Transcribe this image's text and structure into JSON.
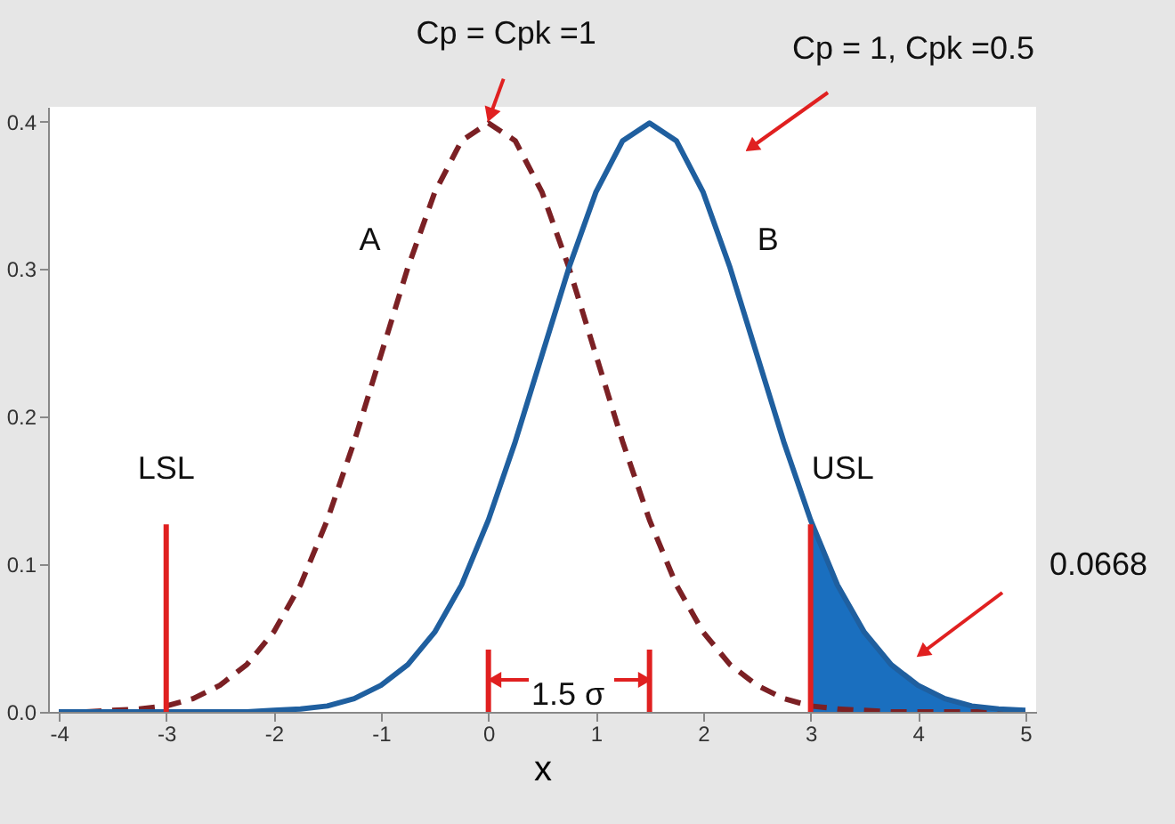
{
  "chart_data": {
    "type": "line",
    "xlabel": "x",
    "xlim": [
      -4.1,
      5.1
    ],
    "ylim": [
      0,
      0.41
    ],
    "xticks": [
      -4,
      -3,
      -2,
      -1,
      0,
      1,
      2,
      3,
      4,
      5
    ],
    "yticks": [
      {
        "value": 0,
        "label": "0.0"
      },
      0.1,
      0.2,
      0.3,
      0.4
    ],
    "grid": false,
    "legend": false,
    "marker": "none",
    "series": [
      {
        "name": "A",
        "color": "#7b2024",
        "line_style": "dashed",
        "x": [
          -4,
          -3.75,
          -3.5,
          -3.25,
          -3,
          -2.75,
          -2.5,
          -2.25,
          -2,
          -1.75,
          -1.5,
          -1.25,
          -1,
          -0.75,
          -0.5,
          -0.25,
          0,
          0.25,
          0.5,
          0.75,
          1,
          1.25,
          1.5,
          1.75,
          2,
          2.25,
          2.5,
          2.75,
          3,
          3.25,
          3.5,
          3.75,
          4,
          4.25,
          4.5,
          4.75,
          5
        ],
        "values": [
          0,
          0,
          0.001,
          0.002,
          0.004,
          0.009,
          0.018,
          0.032,
          0.054,
          0.086,
          0.13,
          0.183,
          0.242,
          0.301,
          0.352,
          0.387,
          0.399,
          0.387,
          0.352,
          0.301,
          0.242,
          0.183,
          0.13,
          0.086,
          0.054,
          0.032,
          0.018,
          0.009,
          0.004,
          0.002,
          0.001,
          0,
          0,
          0,
          0,
          0,
          0
        ]
      },
      {
        "name": "B",
        "color": "#1f5f9f",
        "line_style": "solid",
        "x": [
          -4,
          -3.75,
          -3.5,
          -3.25,
          -3,
          -2.75,
          -2.5,
          -2.25,
          -2,
          -1.75,
          -1.5,
          -1.25,
          -1,
          -0.75,
          -0.5,
          -0.25,
          0,
          0.25,
          0.5,
          0.75,
          1,
          1.25,
          1.5,
          1.75,
          2,
          2.25,
          2.5,
          2.75,
          3,
          3.25,
          3.5,
          3.75,
          4,
          4.25,
          4.5,
          4.75,
          5
        ],
        "values": [
          0,
          0,
          0,
          0,
          0,
          0,
          0,
          0,
          0.001,
          0.002,
          0.004,
          0.009,
          0.018,
          0.032,
          0.054,
          0.086,
          0.13,
          0.183,
          0.242,
          0.301,
          0.352,
          0.387,
          0.399,
          0.387,
          0.352,
          0.301,
          0.242,
          0.183,
          0.13,
          0.086,
          0.054,
          0.032,
          0.018,
          0.009,
          0.004,
          0.002,
          0.001
        ]
      },
      {
        "type": "area",
        "color": "#1a6fbf",
        "x": [
          3,
          3.25,
          3.5,
          3.75,
          4,
          4.25,
          4.5,
          4.75,
          5
        ],
        "values": [
          0.13,
          0.086,
          0.054,
          0.032,
          0.018,
          0.009,
          0.004,
          0.002,
          0.001
        ]
      }
    ],
    "ref_lines": [
      {
        "axis": "x",
        "value": -3,
        "label": "LSL",
        "color": "#e02020"
      },
      {
        "axis": "x",
        "value": 3,
        "label": "USL",
        "color": "#e02020"
      },
      {
        "axis": "x",
        "value": 0,
        "color": "#e02020"
      },
      {
        "axis": "x",
        "value": 1.5,
        "color": "#e02020"
      }
    ],
    "annotations": [
      {
        "text": "Cp = Cpk =1",
        "x": 0,
        "y": 0.4
      },
      "Cp = 1, Cpk =0.5",
      "0.0668",
      "1.5 σ"
    ]
  }
}
